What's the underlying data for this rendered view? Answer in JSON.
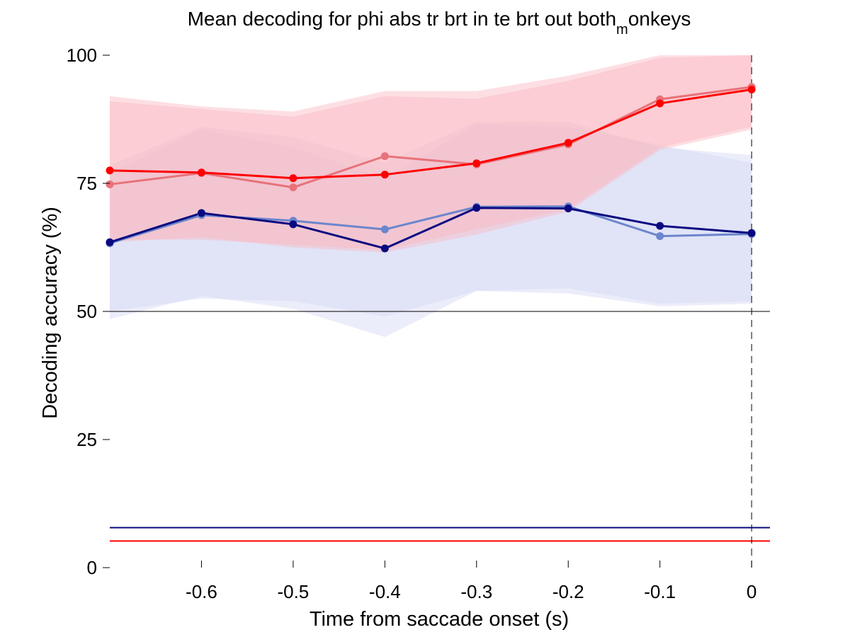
{
  "chart_data": {
    "type": "line",
    "title": "Mean decoding for phi abs tr brt in te brt out  both",
    "title_subscript": "m",
    "title_suffix": "onkeys",
    "xlabel": "Time from saccade onset (s)",
    "ylabel": "Decoding accuracy (%)",
    "xlim": [
      -0.7,
      0.02
    ],
    "ylim": [
      0,
      100
    ],
    "xticks": [
      -0.6,
      -0.5,
      -0.4,
      -0.3,
      -0.2,
      -0.1,
      0
    ],
    "xtick_labels": [
      "-0.6",
      "-0.5",
      "-0.4",
      "-0.3",
      "-0.2",
      "-0.1",
      "0"
    ],
    "yticks": [
      0,
      25,
      50,
      75,
      100
    ],
    "ytick_labels": [
      "0",
      "25",
      "50",
      "75",
      "100"
    ],
    "grid": false,
    "chance_level": 50,
    "event_marker_x": 0,
    "x": [
      -0.7,
      -0.6,
      -0.5,
      -0.4,
      -0.3,
      -0.2,
      -0.1,
      0
    ],
    "series": [
      {
        "color": "#e8727a",
        "band_color": "#fbb7c0",
        "values": [
          74.8,
          77,
          74.2,
          80.3,
          78.7,
          82.6,
          91.4,
          93.8
        ],
        "lower": [
          64,
          64,
          63,
          62,
          66,
          70,
          82,
          86
        ],
        "upper": [
          92,
          90,
          89,
          93,
          93,
          96,
          100,
          100
        ],
        "threshold": 5.2
      },
      {
        "color": "#ff0000",
        "band_color": "#fbb7c0",
        "values": [
          77.5,
          77.1,
          76,
          76.7,
          78.9,
          82.9,
          90.6,
          93.3
        ],
        "lower": [
          63.5,
          64.5,
          62.5,
          61.5,
          65,
          69.5,
          81.5,
          85.5
        ],
        "upper": [
          91,
          89.5,
          88,
          92,
          91.5,
          95,
          99.5,
          100
        ],
        "threshold": 5.2
      },
      {
        "color": "#6b86cc",
        "band_color": "#d4d6f3",
        "values": [
          63.3,
          68.8,
          67.7,
          66,
          70.4,
          70.5,
          64.7,
          65.1
        ],
        "lower": [
          48.5,
          53,
          50.5,
          45,
          54,
          54.5,
          51.5,
          52
        ],
        "upper": [
          78.5,
          86,
          84,
          79,
          87,
          87,
          82,
          80.5
        ],
        "threshold": 7.8
      },
      {
        "color": "#0a0a80",
        "band_color": "#d4d6f3",
        "values": [
          63.5,
          69.2,
          67,
          62.3,
          70.2,
          70.1,
          66.7,
          65.3
        ],
        "lower": [
          50,
          52.5,
          52,
          49,
          54,
          53.5,
          51,
          51.5
        ],
        "upper": [
          77,
          85.5,
          82,
          76,
          86.5,
          86,
          82.5,
          79
        ],
        "threshold": 7.8
      }
    ]
  }
}
